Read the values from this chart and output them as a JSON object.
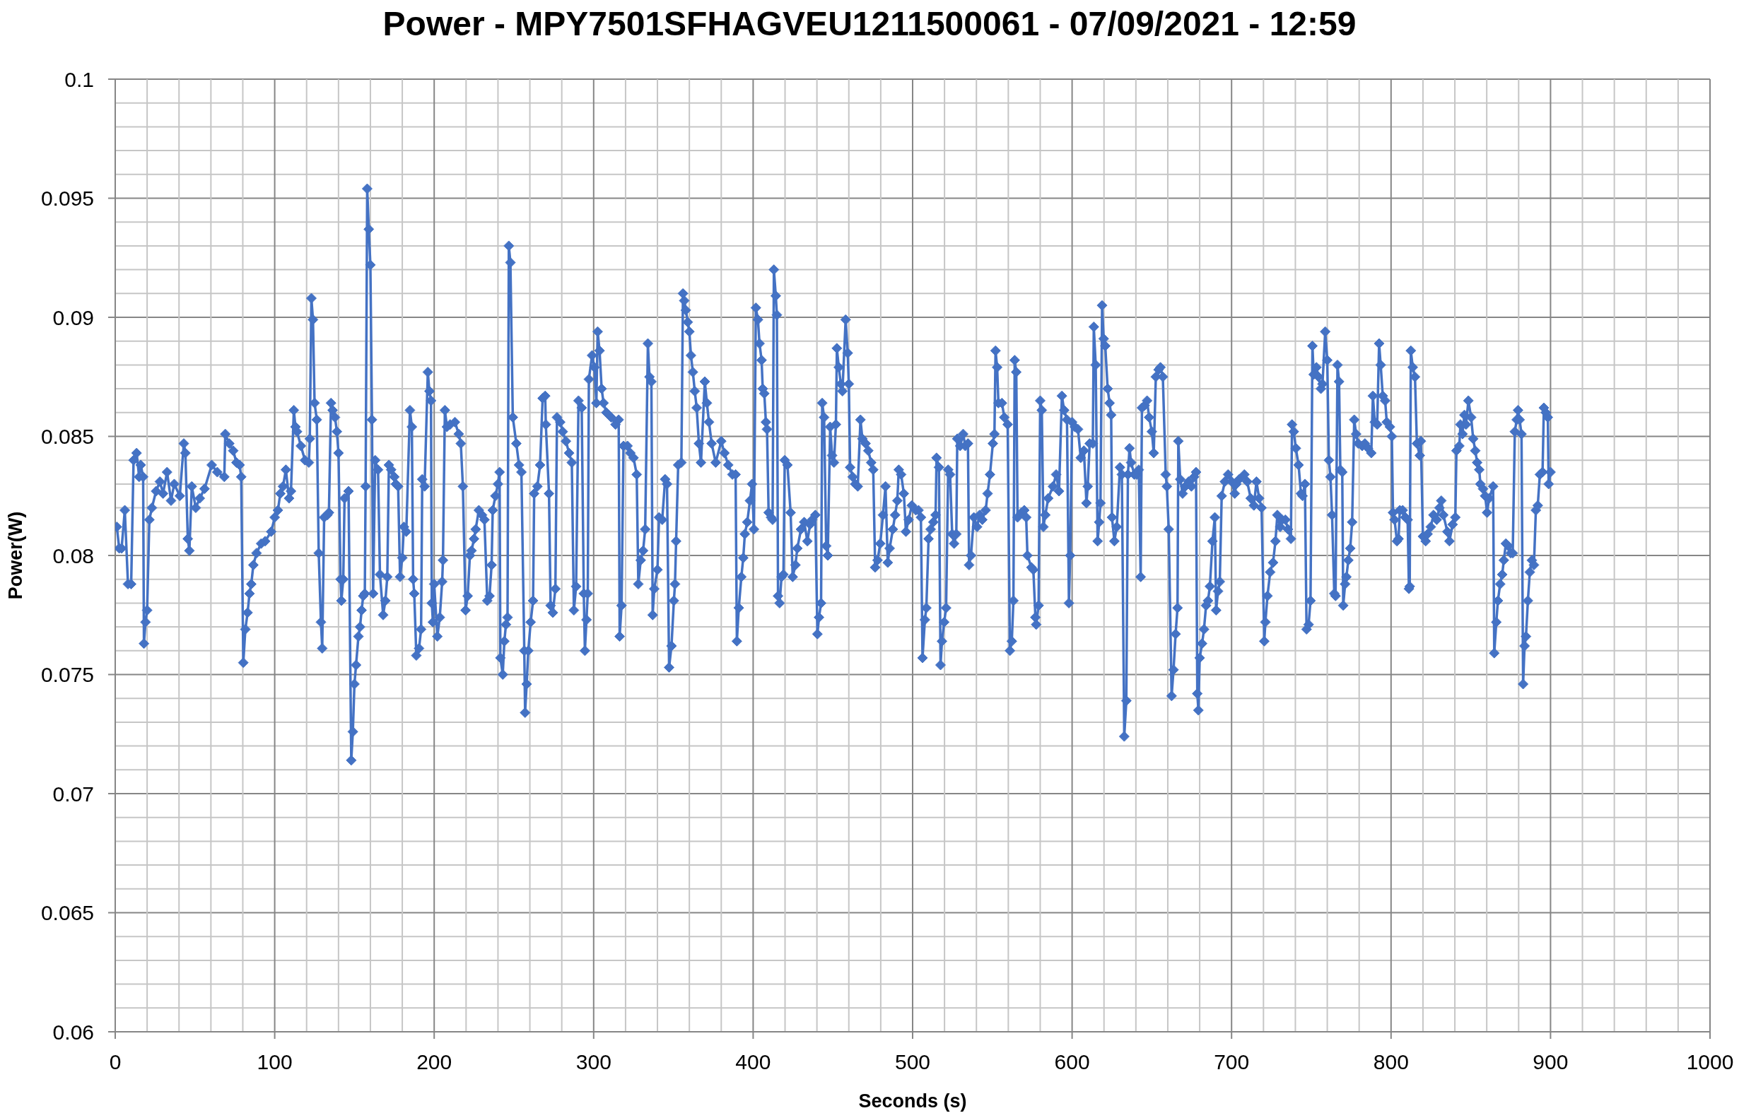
{
  "chart_data": {
    "type": "line",
    "title": "Power - MPY7501SFHAGVEU1211500061 - 07/09/2021 - 12:59",
    "xlabel": "Seconds (s)",
    "ylabel": "Power(W)",
    "color": "#4472c4",
    "marker": "diamond",
    "grid": true,
    "xlim": [
      0,
      1000
    ],
    "xticks": [
      0,
      {
        "value": 20,
        "label": null
      },
      {
        "value": 40,
        "label": null
      },
      {
        "value": 60,
        "label": null
      },
      {
        "value": 80,
        "label": null
      },
      100,
      {
        "value": 120,
        "label": null
      },
      {
        "value": 140,
        "label": null
      },
      {
        "value": 160,
        "label": null
      },
      {
        "value": 180,
        "label": null
      },
      200,
      {
        "value": 220,
        "label": null
      },
      {
        "value": 240,
        "label": null
      },
      {
        "value": 260,
        "label": null
      },
      {
        "value": 280,
        "label": null
      },
      300,
      {
        "value": 320,
        "label": null
      },
      {
        "value": 340,
        "label": null
      },
      {
        "value": 360,
        "label": null
      },
      {
        "value": 380,
        "label": null
      },
      400,
      {
        "value": 420,
        "label": null
      },
      {
        "value": 440,
        "label": null
      },
      {
        "value": 460,
        "label": null
      },
      {
        "value": 480,
        "label": null
      },
      500,
      {
        "value": 520,
        "label": null
      },
      {
        "value": 540,
        "label": null
      },
      {
        "value": 560,
        "label": null
      },
      {
        "value": 580,
        "label": null
      },
      600,
      {
        "value": 620,
        "label": null
      },
      {
        "value": 640,
        "label": null
      },
      {
        "value": 660,
        "label": null
      },
      {
        "value": 680,
        "label": null
      },
      700,
      {
        "value": 720,
        "label": null
      },
      {
        "value": 740,
        "label": null
      },
      {
        "value": 760,
        "label": null
      },
      {
        "value": 780,
        "label": null
      },
      800,
      {
        "value": 820,
        "label": null
      },
      {
        "value": 840,
        "label": null
      },
      {
        "value": 860,
        "label": null
      },
      {
        "value": 880,
        "label": null
      },
      900,
      {
        "value": 920,
        "label": null
      },
      {
        "value": 940,
        "label": null
      },
      {
        "value": 960,
        "label": null
      },
      {
        "value": 980,
        "label": null
      },
      1000
    ],
    "ylim": [
      0.06,
      0.1
    ],
    "yticks": [
      0.06,
      {
        "value": 0.061,
        "label": null
      },
      {
        "value": 0.062,
        "label": null
      },
      {
        "value": 0.063,
        "label": null
      },
      {
        "value": 0.064,
        "label": null
      },
      0.065,
      {
        "value": 0.066,
        "label": null
      },
      {
        "value": 0.067,
        "label": null
      },
      {
        "value": 0.068,
        "label": null
      },
      {
        "value": 0.069,
        "label": null
      },
      0.07,
      {
        "value": 0.071,
        "label": null
      },
      {
        "value": 0.072,
        "label": null
      },
      {
        "value": 0.073,
        "label": null
      },
      {
        "value": 0.074,
        "label": null
      },
      0.075,
      {
        "value": 0.076,
        "label": null
      },
      {
        "value": 0.077,
        "label": null
      },
      {
        "value": 0.078,
        "label": null
      },
      {
        "value": 0.079,
        "label": null
      },
      0.08,
      {
        "value": 0.081,
        "label": null
      },
      {
        "value": 0.082,
        "label": null
      },
      {
        "value": 0.083,
        "label": null
      },
      {
        "value": 0.084,
        "label": null
      },
      0.085,
      {
        "value": 0.086,
        "label": null
      },
      {
        "value": 0.087,
        "label": null
      },
      {
        "value": 0.088,
        "label": null
      },
      {
        "value": 0.089,
        "label": null
      },
      0.09,
      {
        "value": 0.091,
        "label": null
      },
      {
        "value": 0.092,
        "label": null
      },
      {
        "value": 0.093,
        "label": null
      },
      {
        "value": 0.094,
        "label": null
      },
      0.095,
      {
        "value": 0.096,
        "label": null
      },
      {
        "value": 0.097,
        "label": null
      },
      {
        "value": 0.098,
        "label": null
      },
      {
        "value": 0.099,
        "label": null
      },
      0.1
    ],
    "x": [
      1,
      2.5,
      4,
      6,
      8,
      10,
      11.5,
      13.4,
      15,
      16,
      17.5,
      18,
      19,
      20,
      21.4,
      23,
      25.6,
      28,
      30,
      32.5,
      35,
      37,
      40.5,
      43,
      44,
      45.5,
      46.5,
      48,
      50.5,
      53,
      56,
      60.5,
      64,
      68.4,
      69,
      71.5,
      74,
      76,
      78,
      79,
      80.3,
      81.6,
      83,
      84.2,
      85.3,
      86.6,
      88.6,
      91.5,
      94,
      97.8,
      100,
      102,
      103.5,
      105.2,
      107,
      109,
      110.2,
      112,
      113,
      114,
      116.4,
      119,
      121.4,
      122,
      123,
      124,
      125,
      126.4,
      127.6,
      129,
      129.8,
      131,
      133,
      134,
      135.3,
      136.3,
      137.8,
      139,
      140,
      141.3,
      141.8,
      143,
      143.8,
      146.3,
      148,
      149,
      150,
      151,
      152.5,
      153.5,
      154.5,
      155.5,
      156.5,
      157,
      158,
      159,
      160,
      161,
      161.7,
      163,
      164.8,
      166,
      168,
      169.4,
      170.6,
      171.6,
      173,
      175,
      176,
      177.4,
      178.6,
      180,
      181,
      182.5,
      184.8,
      186,
      186.8,
      187.5,
      188.8,
      190.5,
      191.8,
      192.5,
      194,
      196,
      197,
      198,
      198.5,
      199.2,
      200,
      202,
      203.5,
      205,
      205.5,
      206.7,
      208,
      210,
      213,
      215.4,
      216.7,
      218,
      219.7,
      221,
      222.4,
      223.4,
      225,
      226,
      228,
      230,
      231.5,
      233.3,
      234.7,
      236,
      236.7,
      238.4,
      240,
      241,
      241.5,
      243,
      244,
      245,
      246,
      246.8,
      247.8,
      249.3,
      251.5,
      253.2,
      254.7,
      256.5,
      257,
      258,
      259,
      260.5,
      262,
      262.7,
      264.7,
      266.4,
      268,
      269.6,
      270,
      272,
      273,
      274.4,
      276,
      277,
      279,
      280.6,
      282.6,
      284.6,
      286.3,
      287.6,
      289,
      290.5,
      292.5,
      293.8,
      294.5,
      295.5,
      296.3,
      297,
      299,
      300.5,
      301.7,
      302.5,
      303.7,
      305,
      306.2,
      308,
      311,
      313.7,
      315.7,
      316.3,
      317.5,
      318.7,
      321.2,
      323,
      325,
      327,
      328,
      329.5,
      331,
      332.3,
      334,
      335,
      336.2,
      337,
      338,
      340,
      341,
      343,
      344.8,
      346,
      347.3,
      348.8,
      350.3,
      351,
      351.7,
      353,
      355,
      356,
      356.8,
      357.8,
      359,
      360,
      361,
      362.2,
      363.4,
      364.6,
      366,
      367.3,
      369.7,
      371,
      372.3,
      374,
      376.5,
      380,
      382,
      384.4,
      387,
      389,
      389.8,
      391,
      392.6,
      393.8,
      394.8,
      396.3,
      398,
      399.3,
      400.5,
      401.7,
      403,
      404,
      405.3,
      406,
      407,
      408,
      408.7,
      409.7,
      411.2,
      412.2,
      413,
      414.2,
      414.9,
      415.6,
      416.6,
      417.8,
      419,
      419.8,
      421.5,
      423.5,
      424.8,
      426.5,
      427.7,
      430,
      432,
      434,
      435.7,
      437,
      439,
      440.3,
      441.3,
      442.6,
      443.3,
      444.5,
      445.8,
      446.8,
      448.3,
      449.5,
      450.7,
      451.9,
      452.5,
      453.7,
      455,
      456,
      458,
      459.3,
      460,
      460.8,
      462.4,
      464,
      465.6,
      467.3,
      468.5,
      470.5,
      472.2,
      474,
      475.3,
      476.5,
      478,
      479.7,
      481.4,
      483,
      484.4,
      485.6,
      487.6,
      489,
      490.4,
      491.3,
      492.8,
      494.5,
      495.8,
      497.5,
      499.5,
      502,
      503.7,
      505.2,
      506.2,
      507.7,
      508.6,
      510,
      511.3,
      513,
      514.4,
      515,
      516.5,
      517.5,
      518.4,
      519.8,
      521,
      522.3,
      523.5,
      524.8,
      526,
      527.4,
      528,
      529.8,
      531.7,
      533,
      534.7,
      535.4,
      536.6,
      538.4,
      540.4,
      542,
      543.7,
      545.8,
      547,
      548.5,
      550.3,
      551.3,
      552,
      553,
      553.8,
      556,
      557.5,
      559.6,
      561,
      562.2,
      563.2,
      564,
      565,
      565.8,
      568.3,
      570,
      571.2,
      572,
      574.5,
      575.7,
      577,
      577.5,
      579,
      580,
      581,
      582,
      583.2,
      585,
      588,
      590,
      591.8,
      593.6,
      595,
      596.8,
      598,
      598.8,
      600,
      601.7,
      603.7,
      605.4,
      607.4,
      609,
      609.8,
      611,
      613,
      613.6,
      614.8,
      616,
      617,
      617.8,
      618.8,
      619.8,
      620.8,
      622.3,
      623.5,
      624.5,
      625,
      626.5,
      628,
      630,
      631.2,
      632.7,
      634,
      635,
      636,
      637,
      639,
      640.6,
      641.8,
      643,
      643.8,
      645.5,
      647,
      648.3,
      650,
      651.2,
      652.5,
      654.2,
      655.4,
      656.9,
      658.7,
      659.4,
      660.6,
      662.4,
      663.6,
      664.9,
      666.1,
      666.6,
      667.8,
      669.3,
      671,
      673,
      674.8,
      676.5,
      677.7,
      678.5,
      679.2,
      680,
      681.5,
      682.7,
      684,
      685.2,
      686.4,
      688,
      689.5,
      690.3,
      691.5,
      692.6,
      693.8,
      695.8,
      697.8,
      700,
      702,
      703,
      704.8,
      708,
      709.8,
      712,
      714,
      715.6,
      717.3,
      718.8,
      720.5,
      721.2,
      722.5,
      724.2,
      726,
      727.5,
      728.7,
      730.5,
      731.7,
      733.7,
      735.4,
      737.2,
      737.9,
      739,
      740.3,
      742,
      743.5,
      744.5,
      746,
      747,
      748.3,
      749.5,
      750.7,
      751.5,
      753.2,
      754.5,
      756,
      757,
      758.7,
      760,
      761,
      762,
      763,
      764.4,
      765.2,
      766.4,
      767.4,
      768.2,
      769.4,
      770,
      771.2,
      772,
      773.2,
      774.4,
      775.6,
      776.9,
      778.1,
      779.4,
      781.9,
      783.6,
      785.6,
      787.6,
      788.6,
      789.8,
      791.3,
      792.5,
      793.5,
      794.8,
      796.3,
      797.3,
      799.3,
      800.5,
      801.2,
      802.2,
      803.7,
      804.7,
      805.5,
      807.3,
      809,
      810.4,
      811.2,
      811.7,
      812.4,
      813.6,
      815,
      816.2,
      818,
      818.7,
      820,
      821.7,
      822.9,
      824.9,
      826.6,
      828.6,
      830.3,
      831.5,
      832.8,
      835.3,
      836.6,
      838.6,
      840.3,
      841,
      842.8,
      843.5,
      844.8,
      846,
      847,
      848.5,
      850.2,
      851.5,
      852.8,
      854,
      855.3,
      856,
      857.7,
      859,
      860.2,
      861.5,
      864,
      864.7,
      866,
      867,
      868.4,
      869.7,
      870.7,
      872,
      873.5,
      875,
      876.3,
      877.6,
      878.8,
      879.6,
      880.6,
      881.8,
      882.8,
      883.7,
      884.6,
      885.8,
      887,
      888.3,
      889.6,
      890.8,
      892,
      893.3,
      895,
      895.8,
      897,
      898.3,
      898.8,
      900
    ],
    "values": [
      0.0812,
      0.0803,
      0.0803,
      0.0819,
      0.0788,
      0.0788,
      0.084,
      0.0843,
      0.0833,
      0.0838,
      0.0833,
      0.0763,
      0.0772,
      0.0777,
      0.0815,
      0.082,
      0.0827,
      0.0831,
      0.0826,
      0.0835,
      0.0823,
      0.083,
      0.0825,
      0.0847,
      0.0843,
      0.0807,
      0.0802,
      0.0829,
      0.082,
      0.0824,
      0.0828,
      0.0838,
      0.0835,
      0.0833,
      0.0851,
      0.0847,
      0.0844,
      0.0839,
      0.0838,
      0.0833,
      0.0755,
      0.0769,
      0.0776,
      0.0784,
      0.0788,
      0.0796,
      0.0801,
      0.0805,
      0.0806,
      0.081,
      0.0816,
      0.0819,
      0.0826,
      0.0829,
      0.0836,
      0.0824,
      0.0827,
      0.0861,
      0.0854,
      0.0852,
      0.0846,
      0.084,
      0.0839,
      0.0849,
      0.0908,
      0.0899,
      0.0864,
      0.0857,
      0.0801,
      0.0772,
      0.0761,
      0.0816,
      0.0817,
      0.0818,
      0.0864,
      0.0861,
      0.0858,
      0.0852,
      0.0843,
      0.079,
      0.0781,
      0.079,
      0.0824,
      0.0827,
      0.0714,
      0.0726,
      0.0746,
      0.0754,
      0.0766,
      0.077,
      0.0777,
      0.0783,
      0.0784,
      0.0829,
      0.0954,
      0.0937,
      0.0922,
      0.0857,
      0.0784,
      0.084,
      0.0836,
      0.0792,
      0.0775,
      0.0781,
      0.0791,
      0.0838,
      0.0836,
      0.0833,
      0.083,
      0.0829,
      0.0791,
      0.0799,
      0.0812,
      0.081,
      0.0861,
      0.0854,
      0.079,
      0.0784,
      0.0758,
      0.0761,
      0.0769,
      0.0832,
      0.0829,
      0.0877,
      0.0869,
      0.0865,
      0.078,
      0.0772,
      0.0788,
      0.0766,
      0.0774,
      0.0789,
      0.0798,
      0.0861,
      0.0854,
      0.0855,
      0.0856,
      0.0851,
      0.0847,
      0.0829,
      0.0777,
      0.0783,
      0.08,
      0.0802,
      0.0807,
      0.0811,
      0.0819,
      0.0817,
      0.0815,
      0.0781,
      0.0783,
      0.0796,
      0.0819,
      0.0825,
      0.083,
      0.0835,
      0.0757,
      0.075,
      0.0764,
      0.0771,
      0.0774,
      0.093,
      0.0923,
      0.0858,
      0.0847,
      0.0838,
      0.0835,
      0.076,
      0.0734,
      0.0746,
      0.076,
      0.0772,
      0.0781,
      0.0826,
      0.0829,
      0.0838,
      0.0866,
      0.0867,
      0.0855,
      0.0826,
      0.0779,
      0.0776,
      0.0786,
      0.0858,
      0.0856,
      0.0852,
      0.0848,
      0.0843,
      0.0839,
      0.0777,
      0.0787,
      0.0865,
      0.0862,
      0.0784,
      0.076,
      0.0773,
      0.0784,
      0.0874,
      0.0884,
      0.0879,
      0.0864,
      0.0894,
      0.0886,
      0.087,
      0.0864,
      0.086,
      0.0858,
      0.0855,
      0.0857,
      0.0766,
      0.0779,
      0.0846,
      0.0846,
      0.0843,
      0.0841,
      0.0834,
      0.0788,
      0.0798,
      0.0802,
      0.0811,
      0.0889,
      0.0875,
      0.0873,
      0.0775,
      0.0786,
      0.0794,
      0.0816,
      0.0815,
      0.0832,
      0.083,
      0.0753,
      0.0762,
      0.0781,
      0.0788,
      0.0806,
      0.0838,
      0.0839,
      0.091,
      0.0907,
      0.0903,
      0.0898,
      0.0894,
      0.0884,
      0.0877,
      0.0869,
      0.0862,
      0.0847,
      0.0839,
      0.0873,
      0.0864,
      0.0856,
      0.0847,
      0.0839,
      0.0848,
      0.0843,
      0.0838,
      0.0834,
      0.0834,
      0.0764,
      0.0778,
      0.0791,
      0.0799,
      0.0809,
      0.0814,
      0.0823,
      0.083,
      0.0811,
      0.0904,
      0.0899,
      0.0889,
      0.0882,
      0.087,
      0.0868,
      0.0856,
      0.0853,
      0.0818,
      0.0816,
      0.0815,
      0.092,
      0.0909,
      0.0901,
      0.0783,
      0.078,
      0.0791,
      0.0792,
      0.084,
      0.0838,
      0.0818,
      0.0791,
      0.0796,
      0.0803,
      0.0811,
      0.0814,
      0.0806,
      0.0813,
      0.0815,
      0.0817,
      0.0767,
      0.0774,
      0.078,
      0.0864,
      0.0858,
      0.0804,
      0.08,
      0.0854,
      0.0842,
      0.0839,
      0.0855,
      0.0887,
      0.0879,
      0.0872,
      0.0869,
      0.0899,
      0.0885,
      0.0872,
      0.0837,
      0.0833,
      0.083,
      0.0829,
      0.0857,
      0.0849,
      0.0847,
      0.0844,
      0.0839,
      0.0836,
      0.0795,
      0.0798,
      0.0805,
      0.0817,
      0.0829,
      0.0797,
      0.0803,
      0.0811,
      0.0817,
      0.0823,
      0.0836,
      0.0834,
      0.0826,
      0.081,
      0.0815,
      0.0821,
      0.0819,
      0.0819,
      0.0816,
      0.0757,
      0.0773,
      0.0778,
      0.0807,
      0.0811,
      0.0814,
      0.0817,
      0.0841,
      0.0837,
      0.0754,
      0.0764,
      0.0772,
      0.0778,
      0.0836,
      0.0834,
      0.0809,
      0.0805,
      0.0809,
      0.0849,
      0.0846,
      0.0851,
      0.0846,
      0.0847,
      0.0796,
      0.08,
      0.0816,
      0.0812,
      0.0817,
      0.0815,
      0.0819,
      0.0826,
      0.0834,
      0.0847,
      0.0851,
      0.0886,
      0.0879,
      0.0864,
      0.0864,
      0.0858,
      0.0855,
      0.076,
      0.0764,
      0.0781,
      0.0882,
      0.0877,
      0.0816,
      0.0818,
      0.0819,
      0.0816,
      0.08,
      0.0795,
      0.0794,
      0.0774,
      0.0771,
      0.0779,
      0.0865,
      0.0861,
      0.0812,
      0.0817,
      0.0824,
      0.0829,
      0.0834,
      0.0827,
      0.0867,
      0.0861,
      0.0857,
      0.078,
      0.08,
      0.0856,
      0.0854,
      0.0853,
      0.0841,
      0.0844,
      0.0822,
      0.0829,
      0.0847,
      0.0847,
      0.0896,
      0.088,
      0.0806,
      0.0814,
      0.0822,
      0.0905,
      0.0891,
      0.0888,
      0.087,
      0.0864,
      0.0859,
      0.0816,
      0.0806,
      0.0812,
      0.0837,
      0.0834,
      0.0724,
      0.0739,
      0.0834,
      0.0845,
      0.0839,
      0.0834,
      0.0834,
      0.0836,
      0.0791,
      0.0862,
      0.0863,
      0.0865,
      0.0858,
      0.0852,
      0.0843,
      0.0875,
      0.0878,
      0.0879,
      0.0875,
      0.0834,
      0.0829,
      0.0811,
      0.0741,
      0.0752,
      0.0767,
      0.0778,
      0.0848,
      0.0832,
      0.0826,
      0.0829,
      0.0831,
      0.0829,
      0.0833,
      0.0835,
      0.0742,
      0.0735,
      0.0757,
      0.0763,
      0.0769,
      0.0779,
      0.0781,
      0.0787,
      0.0806,
      0.0816,
      0.0777,
      0.0785,
      0.0789,
      0.0825,
      0.0831,
      0.0834,
      0.0831,
      0.0826,
      0.083,
      0.0832,
      0.0834,
      0.0831,
      0.0824,
      0.0821,
      0.0831,
      0.0824,
      0.082,
      0.0764,
      0.0772,
      0.0783,
      0.0793,
      0.0797,
      0.0806,
      0.0817,
      0.0812,
      0.0815,
      0.0815,
      0.0811,
      0.0807,
      0.0855,
      0.0852,
      0.0845,
      0.0838,
      0.0826,
      0.0825,
      0.083,
      0.0769,
      0.0771,
      0.0781,
      0.0888,
      0.0876,
      0.0879,
      0.0875,
      0.087,
      0.0872,
      0.0894,
      0.0882,
      0.084,
      0.0833,
      0.0817,
      0.0784,
      0.0783,
      0.088,
      0.0873,
      0.0836,
      0.0835,
      0.0779,
      0.0788,
      0.0791,
      0.0798,
      0.0803,
      0.0814,
      0.0857,
      0.0851,
      0.0847,
      0.0846,
      0.0847,
      0.0845,
      0.0843,
      0.0867,
      0.0856,
      0.0855,
      0.0889,
      0.088,
      0.0867,
      0.0865,
      0.0856,
      0.0854,
      0.085,
      0.0818,
      0.0815,
      0.0806,
      0.0807,
      0.0819,
      0.0819,
      0.0816,
      0.0815,
      0.0786,
      0.0787,
      0.0886,
      0.0879,
      0.0875,
      0.0847,
      0.0842,
      0.0848,
      0.0808,
      0.0806,
      0.0809,
      0.0812,
      0.0817,
      0.0815,
      0.082,
      0.0823,
      0.0817,
      0.081,
      0.0806,
      0.0813,
      0.0816,
      0.0844,
      0.0846,
      0.0855,
      0.0851,
      0.0859,
      0.0855,
      0.0865,
      0.0858,
      0.0849,
      0.0844,
      0.0839,
      0.0836,
      0.083,
      0.0828,
      0.0825,
      0.0818,
      0.0824,
      0.0829,
      0.0759,
      0.0772,
      0.0781,
      0.0788,
      0.0792,
      0.0798,
      0.0805,
      0.0804,
      0.0801,
      0.0801,
      0.0852,
      0.0857,
      0.0861,
      0.0857,
      0.0851,
      0.0746,
      0.0762,
      0.0766,
      0.0781,
      0.0793,
      0.0798,
      0.0796,
      0.0819,
      0.0821,
      0.0834,
      0.0835,
      0.0862,
      0.086,
      0.0858,
      0.083,
      0.0835
    ]
  }
}
